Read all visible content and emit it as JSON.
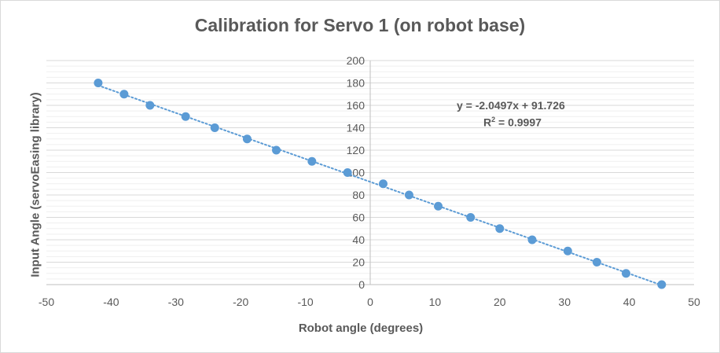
{
  "chart_data": {
    "type": "scatter",
    "title": "Calibration for Servo 1 (on robot base)",
    "xlabel": "Robot angle (degrees)",
    "ylabel": "Input Angle (servoEasing library)",
    "xlim": [
      -50,
      50
    ],
    "ylim": [
      0,
      200
    ],
    "x_major_ticks": [
      -50,
      -40,
      -30,
      -20,
      -10,
      0,
      10,
      20,
      30,
      40,
      50
    ],
    "y_major_ticks": [
      0,
      20,
      40,
      60,
      80,
      100,
      120,
      140,
      160,
      180,
      200
    ],
    "y_minor_step": 5,
    "grid": true,
    "legend": "none",
    "marker_color": "#5b9bd5",
    "series": [
      {
        "points": [
          {
            "x": -42.0,
            "y": 180
          },
          {
            "x": -38.0,
            "y": 170
          },
          {
            "x": -34.0,
            "y": 160
          },
          {
            "x": -28.5,
            "y": 150
          },
          {
            "x": -24.0,
            "y": 140
          },
          {
            "x": -19.0,
            "y": 130
          },
          {
            "x": -14.5,
            "y": 120
          },
          {
            "x": -9.0,
            "y": 110
          },
          {
            "x": -3.5,
            "y": 100
          },
          {
            "x": 2.0,
            "y": 90
          },
          {
            "x": 6.0,
            "y": 80
          },
          {
            "x": 10.5,
            "y": 70
          },
          {
            "x": 15.5,
            "y": 60
          },
          {
            "x": 20.0,
            "y": 50
          },
          {
            "x": 25.0,
            "y": 40
          },
          {
            "x": 30.5,
            "y": 30
          },
          {
            "x": 35.0,
            "y": 20
          },
          {
            "x": 39.5,
            "y": 10
          },
          {
            "x": 45.0,
            "y": 0
          }
        ]
      }
    ],
    "trendline": {
      "type": "linear",
      "style": "dotted",
      "slope": -2.0497,
      "intercept": 91.726,
      "equation_label": "y = -2.0497x + 91.726",
      "r2_prefix": "R",
      "r2_sup": "2",
      "r2_suffix": " = 0.9997"
    }
  }
}
